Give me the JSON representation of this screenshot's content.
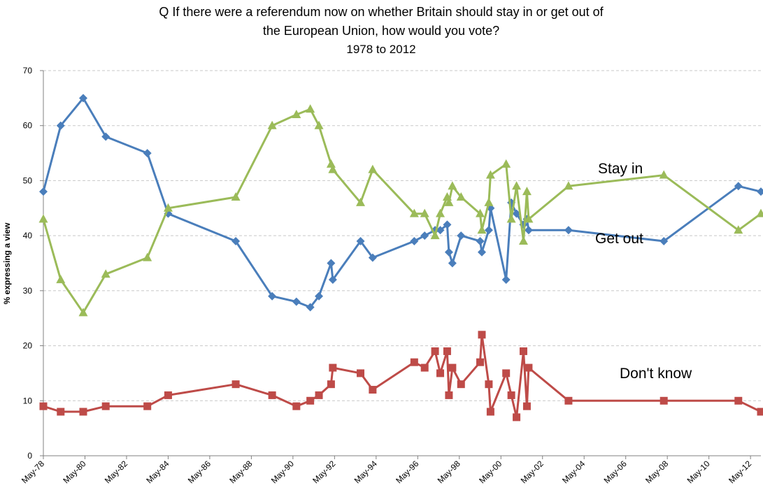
{
  "chart_data": {
    "type": "line",
    "title_lines": [
      "Q If there were a referendum now on whether Britain should stay in or get out of",
      "the European Union, how would you vote?"
    ],
    "subtitle": "1978 to 2012",
    "ylabel": "% expressing a view",
    "xlabel": "",
    "ylim": [
      0,
      70
    ],
    "yticks": [
      0,
      10,
      20,
      30,
      40,
      50,
      60,
      70
    ],
    "xlim": [
      "1978-05",
      "2012-11"
    ],
    "xtick_labels": [
      "May-78",
      "May-80",
      "May-82",
      "May-84",
      "May-86",
      "May-88",
      "May-90",
      "May-92",
      "May-94",
      "May-96",
      "May-98",
      "May-00",
      "May-02",
      "May-04",
      "May-06",
      "May-08",
      "May-10",
      "May-12"
    ],
    "xtick_dates": [
      "1978-05",
      "1980-05",
      "1982-05",
      "1984-05",
      "1986-05",
      "1988-05",
      "1990-05",
      "1992-05",
      "1994-05",
      "1996-05",
      "1998-05",
      "2000-05",
      "2002-05",
      "2004-05",
      "2006-05",
      "2008-05",
      "2010-05",
      "2012-05"
    ],
    "grid": true,
    "annotations": [
      "Stay in",
      "Get out",
      "Don't know"
    ],
    "series": [
      {
        "color": "#4a7ebb",
        "marker": "diamond",
        "points": [
          [
            "1978-05",
            48
          ],
          [
            "1979-03",
            60
          ],
          [
            "1980-04",
            65
          ],
          [
            "1981-05",
            58
          ],
          [
            "1983-05",
            55
          ],
          [
            "1984-05",
            44
          ],
          [
            "1987-08",
            39
          ],
          [
            "1989-05",
            29
          ],
          [
            "1990-07",
            28
          ],
          [
            "1991-03",
            27
          ],
          [
            "1991-08",
            29
          ],
          [
            "1992-03",
            35
          ],
          [
            "1992-04",
            32
          ],
          [
            "1993-08",
            39
          ],
          [
            "1994-03",
            36
          ],
          [
            "1996-03",
            39
          ],
          [
            "1996-09",
            40
          ],
          [
            "1997-03",
            41
          ],
          [
            "1997-06",
            41
          ],
          [
            "1997-10",
            42
          ],
          [
            "1997-11",
            37
          ],
          [
            "1998-01",
            35
          ],
          [
            "1998-06",
            40
          ],
          [
            "1999-05",
            39
          ],
          [
            "1999-06",
            37
          ],
          [
            "1999-10",
            41
          ],
          [
            "1999-11",
            45
          ],
          [
            "2000-08",
            32
          ],
          [
            "2000-11",
            46
          ],
          [
            "2001-02",
            44
          ],
          [
            "2001-06",
            42
          ],
          [
            "2001-08",
            43
          ],
          [
            "2001-09",
            41
          ],
          [
            "2003-08",
            41
          ],
          [
            "2008-03",
            39
          ],
          [
            "2011-10",
            49
          ],
          [
            "2012-11",
            48
          ]
        ]
      },
      {
        "color": "#9bbb59",
        "marker": "triangle",
        "points": [
          [
            "1978-05",
            43
          ],
          [
            "1979-03",
            32
          ],
          [
            "1980-04",
            26
          ],
          [
            "1981-05",
            33
          ],
          [
            "1983-05",
            36
          ],
          [
            "1984-05",
            45
          ],
          [
            "1987-08",
            47
          ],
          [
            "1989-05",
            60
          ],
          [
            "1990-07",
            62
          ],
          [
            "1991-03",
            63
          ],
          [
            "1991-08",
            60
          ],
          [
            "1992-03",
            53
          ],
          [
            "1992-04",
            52
          ],
          [
            "1993-08",
            46
          ],
          [
            "1994-03",
            52
          ],
          [
            "1996-03",
            44
          ],
          [
            "1996-09",
            44
          ],
          [
            "1997-03",
            40
          ],
          [
            "1997-06",
            44
          ],
          [
            "1997-10",
            47
          ],
          [
            "1997-11",
            46
          ],
          [
            "1998-01",
            49
          ],
          [
            "1998-06",
            47
          ],
          [
            "1999-05",
            44
          ],
          [
            "1999-06",
            41
          ],
          [
            "1999-10",
            46
          ],
          [
            "1999-11",
            51
          ],
          [
            "2000-08",
            53
          ],
          [
            "2000-11",
            43
          ],
          [
            "2001-02",
            49
          ],
          [
            "2001-06",
            39
          ],
          [
            "2001-08",
            48
          ],
          [
            "2001-09",
            43
          ],
          [
            "2003-08",
            49
          ],
          [
            "2008-03",
            51
          ],
          [
            "2011-10",
            41
          ],
          [
            "2012-11",
            44
          ]
        ]
      },
      {
        "color": "#be4b48",
        "marker": "square",
        "points": [
          [
            "1978-05",
            9
          ],
          [
            "1979-03",
            8
          ],
          [
            "1980-04",
            8
          ],
          [
            "1981-05",
            9
          ],
          [
            "1983-05",
            9
          ],
          [
            "1984-05",
            11
          ],
          [
            "1987-08",
            13
          ],
          [
            "1989-05",
            11
          ],
          [
            "1990-07",
            9
          ],
          [
            "1991-03",
            10
          ],
          [
            "1991-08",
            11
          ],
          [
            "1992-03",
            13
          ],
          [
            "1992-04",
            16
          ],
          [
            "1993-08",
            15
          ],
          [
            "1994-03",
            12
          ],
          [
            "1996-03",
            17
          ],
          [
            "1996-09",
            16
          ],
          [
            "1997-03",
            19
          ],
          [
            "1997-06",
            15
          ],
          [
            "1997-10",
            19
          ],
          [
            "1997-11",
            11
          ],
          [
            "1998-01",
            16
          ],
          [
            "1998-06",
            13
          ],
          [
            "1999-05",
            17
          ],
          [
            "1999-06",
            22
          ],
          [
            "1999-10",
            13
          ],
          [
            "1999-11",
            8
          ],
          [
            "2000-08",
            15
          ],
          [
            "2000-11",
            11
          ],
          [
            "2001-02",
            7
          ],
          [
            "2001-06",
            19
          ],
          [
            "2001-08",
            9
          ],
          [
            "2001-09",
            16
          ],
          [
            "2003-08",
            10
          ],
          [
            "2008-03",
            10
          ],
          [
            "2011-10",
            10
          ],
          [
            "2012-11",
            8
          ]
        ]
      }
    ]
  }
}
